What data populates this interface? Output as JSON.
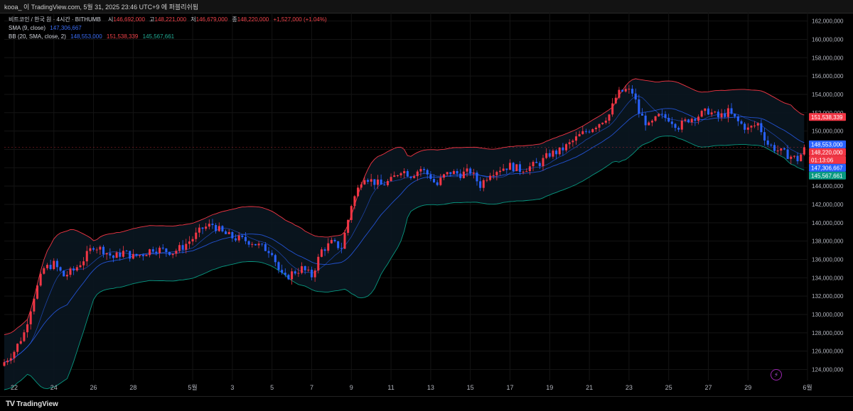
{
  "header": {
    "text": "kooa_ 이 TradingView.com, 5월 31, 2025 23:46 UTC+9 에 퍼블리쉬됨"
  },
  "legend": {
    "symbol": "비트코인 / 한국 원 · 4시간 · BITHUMB",
    "o_label": "시",
    "o_value": "146,692,000",
    "h_label": "고",
    "h_value": "148,221,000",
    "l_label": "저",
    "l_value": "146,679,000",
    "c_label": "종",
    "c_value": "148,220,000",
    "change": "+1,527,000 (+1.04%)",
    "sma_label": "SMA (9, close)",
    "sma_value": "147,306,667",
    "bb_label": "BB (20, SMA, close, 2)",
    "bb_basis": "148,553,000",
    "bb_upper": "151,538,339",
    "bb_lower": "145,567,661"
  },
  "price_tags": [
    {
      "text": "151,538,339",
      "value": 151538339,
      "color": "#f23645"
    },
    {
      "text": "148,553,000",
      "value": 148553000,
      "color": "#2962ff"
    },
    {
      "text": "148,220,000",
      "value": 148220000,
      "color": "#f23645"
    },
    {
      "text": "01:13:06",
      "value": 147700000,
      "color": "#f23645"
    },
    {
      "text": "147,306,667",
      "value": 147306667,
      "color": "#2962ff"
    },
    {
      "text": "145,567,661",
      "value": 145567661,
      "color": "#089981"
    }
  ],
  "footer": {
    "logo_text": "TradingView",
    "logo_mark": "TV"
  },
  "colors": {
    "up": "#f23645",
    "down": "#2962ff",
    "bb_upper": "#f23645",
    "bb_basis": "#2962ff",
    "bb_lower": "#089981",
    "sma": "#2962ff",
    "grid": "#141414",
    "axis_text": "#b2b5be"
  },
  "chart_data": {
    "type": "candlestick",
    "title": "비트코인 / 한국 원 · 4시간 · BITHUMB",
    "ylim": [
      122800000,
      162900000
    ],
    "y_ticks": [
      124000000,
      126000000,
      128000000,
      130000000,
      132000000,
      134000000,
      136000000,
      138000000,
      140000000,
      142000000,
      144000000,
      146000000,
      148000000,
      150000000,
      152000000,
      154000000,
      156000000,
      158000000,
      160000000,
      162000000
    ],
    "y_tick_labels": [
      "124,000,000",
      "126,000,000",
      "128,000,000",
      "130,000,000",
      "132,000,000",
      "134,000,000",
      "136,000,000",
      "138,000,000",
      "140,000,000",
      "142,000,000",
      "144,000,000",
      "146,000,000",
      "148,000,000",
      "150,000,000",
      "152,000,000",
      "154,000,000",
      "156,000,000",
      "158,000,000",
      "160,000,000",
      "162,000,000"
    ],
    "x_tick_labels": [
      {
        "label": "22",
        "day": 22
      },
      {
        "label": "24",
        "day": 24
      },
      {
        "label": "26",
        "day": 26
      },
      {
        "label": "28",
        "day": 28
      },
      {
        "label": "5월",
        "day": 31
      },
      {
        "label": "3",
        "day": 33
      },
      {
        "label": "5",
        "day": 35
      },
      {
        "label": "7",
        "day": 37
      },
      {
        "label": "9",
        "day": 39
      },
      {
        "label": "11",
        "day": 41
      },
      {
        "label": "13",
        "day": 43
      },
      {
        "label": "15",
        "day": 45
      },
      {
        "label": "17",
        "day": 47
      },
      {
        "label": "19",
        "day": 49
      },
      {
        "label": "21",
        "day": 51
      },
      {
        "label": "23",
        "day": 53
      },
      {
        "label": "25",
        "day": 55
      },
      {
        "label": "27",
        "day": 57
      },
      {
        "label": "29",
        "day": 59
      },
      {
        "label": "6월",
        "day": 62
      }
    ],
    "day_start": 21.5,
    "day_end": 62,
    "candles_per_day": 6,
    "close_keypoints": [
      [
        21.5,
        124.8
      ],
      [
        22.0,
        126.0
      ],
      [
        22.5,
        128.0
      ],
      [
        23.0,
        132.0
      ],
      [
        23.5,
        135.0
      ],
      [
        24.0,
        135.5
      ],
      [
        24.5,
        134.2
      ],
      [
        25.0,
        134.8
      ],
      [
        25.5,
        136.0
      ],
      [
        26.0,
        137.5
      ],
      [
        26.5,
        137.0
      ],
      [
        27.0,
        136.2
      ],
      [
        27.5,
        136.8
      ],
      [
        28.0,
        136.3
      ],
      [
        28.5,
        136.6
      ],
      [
        29.0,
        137.2
      ],
      [
        30.0,
        136.8
      ],
      [
        30.5,
        137.4
      ],
      [
        31.0,
        138.3
      ],
      [
        31.5,
        139.4
      ],
      [
        32.0,
        139.8
      ],
      [
        32.5,
        138.9
      ],
      [
        33.0,
        138.4
      ],
      [
        34.0,
        137.9
      ],
      [
        34.5,
        137.3
      ],
      [
        35.0,
        136.9
      ],
      [
        35.3,
        135.0
      ],
      [
        35.6,
        133.8
      ],
      [
        36.0,
        134.5
      ],
      [
        36.5,
        135.0
      ],
      [
        37.0,
        134.2
      ],
      [
        37.5,
        137.0
      ],
      [
        38.0,
        137.8
      ],
      [
        38.5,
        137.3
      ],
      [
        38.8,
        140.0
      ],
      [
        39.0,
        142.0
      ],
      [
        39.3,
        143.5
      ],
      [
        39.6,
        145.2
      ],
      [
        40.0,
        144.6
      ],
      [
        40.5,
        144.1
      ],
      [
        41.0,
        144.6
      ],
      [
        41.5,
        145.8
      ],
      [
        42.0,
        145.2
      ],
      [
        42.5,
        145.9
      ],
      [
        43.0,
        145.0
      ],
      [
        43.3,
        144.0
      ],
      [
        43.6,
        145.0
      ],
      [
        44.0,
        145.5
      ],
      [
        44.5,
        145.3
      ],
      [
        45.0,
        145.6
      ],
      [
        45.5,
        144.1
      ],
      [
        46.0,
        145.5
      ],
      [
        46.5,
        145.9
      ],
      [
        47.0,
        146.2
      ],
      [
        47.5,
        145.8
      ],
      [
        48.0,
        146.1
      ],
      [
        48.5,
        146.5
      ],
      [
        49.0,
        147.5
      ],
      [
        49.5,
        147.8
      ],
      [
        50.0,
        148.6
      ],
      [
        50.5,
        149.5
      ],
      [
        51.0,
        150.2
      ],
      [
        51.5,
        150.9
      ],
      [
        52.0,
        151.8
      ],
      [
        52.4,
        154.0
      ],
      [
        52.8,
        154.5
      ],
      [
        53.2,
        154.2
      ],
      [
        53.5,
        152.0
      ],
      [
        54.0,
        150.5
      ],
      [
        54.5,
        151.6
      ],
      [
        55.0,
        151.4
      ],
      [
        55.5,
        150.5
      ],
      [
        56.0,
        151.3
      ],
      [
        56.5,
        151.7
      ],
      [
        57.0,
        152.2
      ],
      [
        57.5,
        151.5
      ],
      [
        58.0,
        152.1
      ],
      [
        58.5,
        151.0
      ],
      [
        59.0,
        150.2
      ],
      [
        59.5,
        150.8
      ],
      [
        60.0,
        148.6
      ],
      [
        60.5,
        147.9
      ],
      [
        61.0,
        147.4
      ],
      [
        61.5,
        146.9
      ],
      [
        61.9,
        148.22
      ]
    ]
  }
}
